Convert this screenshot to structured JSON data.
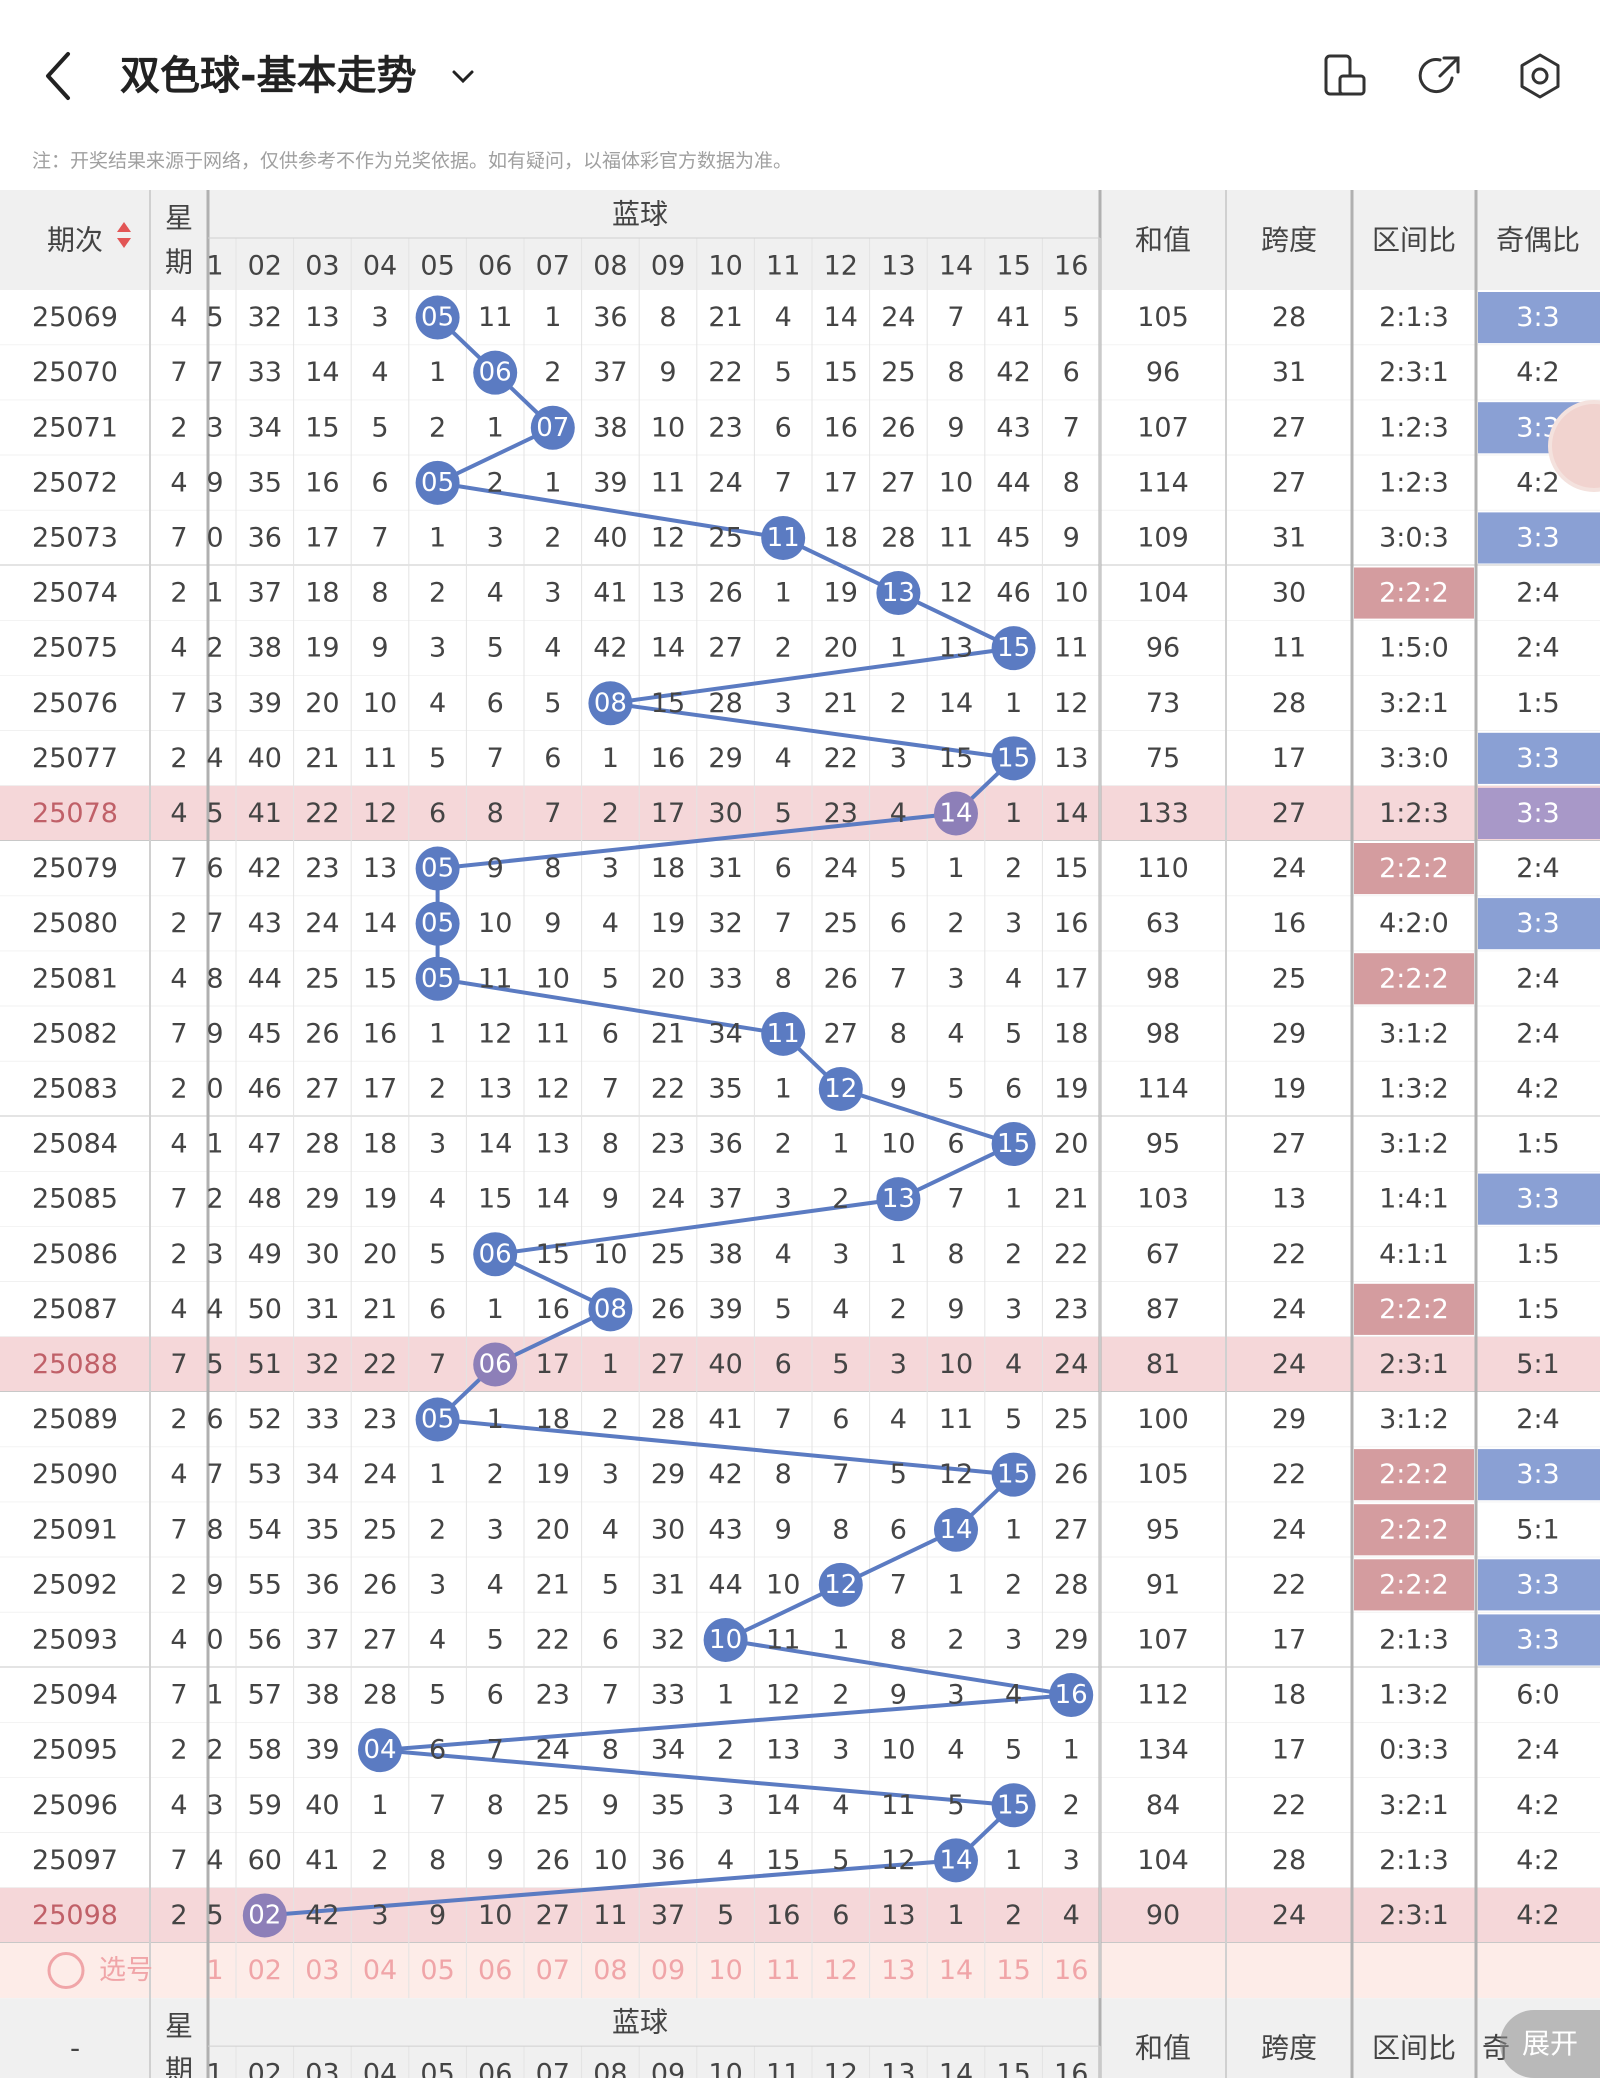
{
  "header": {
    "title": "双色球-基本走势"
  },
  "note": "注：开奖结果来源于网络，仅供参考不作为兑奖依据。如有疑问，以福体彩官方数据为准。",
  "columns": {
    "period": "期次",
    "week": "星期",
    "blue": "蓝球",
    "blue_numbers": [
      "1",
      "02",
      "03",
      "04",
      "05",
      "06",
      "07",
      "08",
      "09",
      "10",
      "11",
      "12",
      "13",
      "14",
      "15",
      "16"
    ],
    "sum": "和值",
    "span": "跨度",
    "zone": "区间比",
    "oddeven": "奇偶比"
  },
  "rows": [
    {
      "period": "25069",
      "week": "4",
      "first": "5",
      "blue": 5,
      "cells": [
        "32",
        "13",
        "3",
        "05",
        "11",
        "1",
        "36",
        "8",
        "21",
        "4",
        "14",
        "24",
        "7",
        "41",
        "5"
      ],
      "sum": "105",
      "span": "28",
      "zone": "2:1:3",
      "oe": "3:3",
      "zone_hl": false,
      "oe_hl": true,
      "row_hl": false
    },
    {
      "period": "25070",
      "week": "7",
      "first": "7",
      "blue": 6,
      "cells": [
        "33",
        "14",
        "4",
        "1",
        "06",
        "2",
        "37",
        "9",
        "22",
        "5",
        "15",
        "25",
        "8",
        "42",
        "6"
      ],
      "sum": "96",
      "span": "31",
      "zone": "2:3:1",
      "oe": "4:2",
      "zone_hl": false,
      "oe_hl": false,
      "row_hl": false
    },
    {
      "period": "25071",
      "week": "2",
      "first": "3",
      "blue": 7,
      "cells": [
        "34",
        "15",
        "5",
        "2",
        "1",
        "07",
        "38",
        "10",
        "23",
        "6",
        "16",
        "26",
        "9",
        "43",
        "7"
      ],
      "sum": "107",
      "span": "27",
      "zone": "1:2:3",
      "oe": "3:3",
      "zone_hl": false,
      "oe_hl": true,
      "row_hl": false
    },
    {
      "period": "25072",
      "week": "4",
      "first": "9",
      "blue": 5,
      "cells": [
        "35",
        "16",
        "6",
        "05",
        "2",
        "1",
        "39",
        "11",
        "24",
        "7",
        "17",
        "27",
        "10",
        "44",
        "8"
      ],
      "sum": "114",
      "span": "27",
      "zone": "1:2:3",
      "oe": "4:2",
      "zone_hl": false,
      "oe_hl": false,
      "row_hl": false
    },
    {
      "period": "25073",
      "week": "7",
      "first": "0",
      "blue": 11,
      "cells": [
        "36",
        "17",
        "7",
        "1",
        "3",
        "2",
        "40",
        "12",
        "25",
        "11",
        "18",
        "28",
        "11",
        "45",
        "9"
      ],
      "sum": "109",
      "span": "31",
      "zone": "3:0:3",
      "oe": "3:3",
      "zone_hl": false,
      "oe_hl": true,
      "row_hl": false
    },
    {
      "period": "25074",
      "week": "2",
      "first": "1",
      "blue": 13,
      "cells": [
        "37",
        "18",
        "8",
        "2",
        "4",
        "3",
        "41",
        "13",
        "26",
        "1",
        "19",
        "13",
        "12",
        "46",
        "10"
      ],
      "sum": "104",
      "span": "30",
      "zone": "2:2:2",
      "oe": "2:4",
      "zone_hl": true,
      "oe_hl": false,
      "row_hl": false
    },
    {
      "period": "25075",
      "week": "4",
      "first": "2",
      "blue": 15,
      "cells": [
        "38",
        "19",
        "9",
        "3",
        "5",
        "4",
        "42",
        "14",
        "27",
        "2",
        "20",
        "1",
        "13",
        "15",
        "11"
      ],
      "sum": "96",
      "span": "11",
      "zone": "1:5:0",
      "oe": "2:4",
      "zone_hl": false,
      "oe_hl": false,
      "row_hl": false
    },
    {
      "period": "25076",
      "week": "7",
      "first": "3",
      "blue": 8,
      "cells": [
        "39",
        "20",
        "10",
        "4",
        "6",
        "5",
        "08",
        "15",
        "28",
        "3",
        "21",
        "2",
        "14",
        "1",
        "12"
      ],
      "sum": "73",
      "span": "28",
      "zone": "3:2:1",
      "oe": "1:5",
      "zone_hl": false,
      "oe_hl": false,
      "row_hl": false
    },
    {
      "period": "25077",
      "week": "2",
      "first": "4",
      "blue": 15,
      "cells": [
        "40",
        "21",
        "11",
        "5",
        "7",
        "6",
        "1",
        "16",
        "29",
        "4",
        "22",
        "3",
        "15",
        "15",
        "13"
      ],
      "sum": "75",
      "span": "17",
      "zone": "3:3:0",
      "oe": "3:3",
      "zone_hl": false,
      "oe_hl": true,
      "row_hl": false
    },
    {
      "period": "25078",
      "week": "4",
      "first": "5",
      "blue": 14,
      "cells": [
        "41",
        "22",
        "12",
        "6",
        "8",
        "7",
        "2",
        "17",
        "30",
        "5",
        "23",
        "4",
        "14",
        "1",
        "14"
      ],
      "sum": "133",
      "span": "27",
      "zone": "1:2:3",
      "oe": "3:3",
      "zone_hl": false,
      "oe_hl": true,
      "row_hl": true
    },
    {
      "period": "25079",
      "week": "7",
      "first": "6",
      "blue": 5,
      "cells": [
        "42",
        "23",
        "13",
        "05",
        "9",
        "8",
        "3",
        "18",
        "31",
        "6",
        "24",
        "5",
        "1",
        "2",
        "15"
      ],
      "sum": "110",
      "span": "24",
      "zone": "2:2:2",
      "oe": "2:4",
      "zone_hl": true,
      "oe_hl": false,
      "row_hl": false
    },
    {
      "period": "25080",
      "week": "2",
      "first": "7",
      "blue": 5,
      "cells": [
        "43",
        "24",
        "14",
        "05",
        "10",
        "9",
        "4",
        "19",
        "32",
        "7",
        "25",
        "6",
        "2",
        "3",
        "16"
      ],
      "sum": "63",
      "span": "16",
      "zone": "4:2:0",
      "oe": "3:3",
      "zone_hl": false,
      "oe_hl": true,
      "row_hl": false
    },
    {
      "period": "25081",
      "week": "4",
      "first": "8",
      "blue": 5,
      "cells": [
        "44",
        "25",
        "15",
        "05",
        "11",
        "10",
        "5",
        "20",
        "33",
        "8",
        "26",
        "7",
        "3",
        "4",
        "17"
      ],
      "sum": "98",
      "span": "25",
      "zone": "2:2:2",
      "oe": "2:4",
      "zone_hl": true,
      "oe_hl": false,
      "row_hl": false
    },
    {
      "period": "25082",
      "week": "7",
      "first": "9",
      "blue": 11,
      "cells": [
        "45",
        "26",
        "16",
        "1",
        "12",
        "11",
        "6",
        "21",
        "34",
        "11",
        "27",
        "8",
        "4",
        "5",
        "18"
      ],
      "sum": "98",
      "span": "29",
      "zone": "3:1:2",
      "oe": "2:4",
      "zone_hl": false,
      "oe_hl": false,
      "row_hl": false
    },
    {
      "period": "25083",
      "week": "2",
      "first": "0",
      "blue": 12,
      "cells": [
        "46",
        "27",
        "17",
        "2",
        "13",
        "12",
        "7",
        "22",
        "35",
        "1",
        "12",
        "9",
        "5",
        "6",
        "19"
      ],
      "sum": "114",
      "span": "19",
      "zone": "1:3:2",
      "oe": "4:2",
      "zone_hl": false,
      "oe_hl": false,
      "row_hl": false
    },
    {
      "period": "25084",
      "week": "4",
      "first": "1",
      "blue": 15,
      "cells": [
        "47",
        "28",
        "18",
        "3",
        "14",
        "13",
        "8",
        "23",
        "36",
        "2",
        "1",
        "10",
        "6",
        "15",
        "20"
      ],
      "sum": "95",
      "span": "27",
      "zone": "3:1:2",
      "oe": "1:5",
      "zone_hl": false,
      "oe_hl": false,
      "row_hl": false
    },
    {
      "period": "25085",
      "week": "7",
      "first": "2",
      "blue": 13,
      "cells": [
        "48",
        "29",
        "19",
        "4",
        "15",
        "14",
        "9",
        "24",
        "37",
        "3",
        "2",
        "13",
        "7",
        "1",
        "21"
      ],
      "sum": "103",
      "span": "13",
      "zone": "1:4:1",
      "oe": "3:3",
      "zone_hl": false,
      "oe_hl": true,
      "row_hl": false
    },
    {
      "period": "25086",
      "week": "2",
      "first": "3",
      "blue": 6,
      "cells": [
        "49",
        "30",
        "20",
        "5",
        "06",
        "15",
        "10",
        "25",
        "38",
        "4",
        "3",
        "1",
        "8",
        "2",
        "22"
      ],
      "sum": "67",
      "span": "22",
      "zone": "4:1:1",
      "oe": "1:5",
      "zone_hl": false,
      "oe_hl": false,
      "row_hl": false
    },
    {
      "period": "25087",
      "week": "4",
      "first": "4",
      "blue": 8,
      "cells": [
        "50",
        "31",
        "21",
        "6",
        "1",
        "16",
        "08",
        "26",
        "39",
        "5",
        "4",
        "2",
        "9",
        "3",
        "23"
      ],
      "sum": "87",
      "span": "24",
      "zone": "2:2:2",
      "oe": "1:5",
      "zone_hl": true,
      "oe_hl": false,
      "row_hl": false
    },
    {
      "period": "25088",
      "week": "7",
      "first": "5",
      "blue": 6,
      "cells": [
        "51",
        "32",
        "22",
        "7",
        "06",
        "17",
        "1",
        "27",
        "40",
        "6",
        "5",
        "3",
        "10",
        "4",
        "24"
      ],
      "sum": "81",
      "span": "24",
      "zone": "2:3:1",
      "oe": "5:1",
      "zone_hl": false,
      "oe_hl": false,
      "row_hl": true
    },
    {
      "period": "25089",
      "week": "2",
      "first": "6",
      "blue": 5,
      "cells": [
        "52",
        "33",
        "23",
        "05",
        "1",
        "18",
        "2",
        "28",
        "41",
        "7",
        "6",
        "4",
        "11",
        "5",
        "25"
      ],
      "sum": "100",
      "span": "29",
      "zone": "3:1:2",
      "oe": "2:4",
      "zone_hl": false,
      "oe_hl": false,
      "row_hl": false
    },
    {
      "period": "25090",
      "week": "4",
      "first": "7",
      "blue": 15,
      "cells": [
        "53",
        "34",
        "24",
        "1",
        "2",
        "19",
        "3",
        "29",
        "42",
        "8",
        "7",
        "5",
        "12",
        "15",
        "26"
      ],
      "sum": "105",
      "span": "22",
      "zone": "2:2:2",
      "oe": "3:3",
      "zone_hl": true,
      "oe_hl": true,
      "row_hl": false
    },
    {
      "period": "25091",
      "week": "7",
      "first": "8",
      "blue": 14,
      "cells": [
        "54",
        "35",
        "25",
        "2",
        "3",
        "20",
        "4",
        "30",
        "43",
        "9",
        "8",
        "6",
        "14",
        "1",
        "27"
      ],
      "sum": "95",
      "span": "24",
      "zone": "2:2:2",
      "oe": "5:1",
      "zone_hl": true,
      "oe_hl": false,
      "row_hl": false
    },
    {
      "period": "25092",
      "week": "2",
      "first": "9",
      "blue": 12,
      "cells": [
        "55",
        "36",
        "26",
        "3",
        "4",
        "21",
        "5",
        "31",
        "44",
        "10",
        "12",
        "7",
        "1",
        "2",
        "28"
      ],
      "sum": "91",
      "span": "22",
      "zone": "2:2:2",
      "oe": "3:3",
      "zone_hl": true,
      "oe_hl": true,
      "row_hl": false
    },
    {
      "period": "25093",
      "week": "4",
      "first": "0",
      "blue": 10,
      "cells": [
        "56",
        "37",
        "27",
        "4",
        "5",
        "22",
        "6",
        "32",
        "10",
        "11",
        "1",
        "8",
        "2",
        "3",
        "29"
      ],
      "sum": "107",
      "span": "17",
      "zone": "2:1:3",
      "oe": "3:3",
      "zone_hl": false,
      "oe_hl": true,
      "row_hl": false
    },
    {
      "period": "25094",
      "week": "7",
      "first": "1",
      "blue": 16,
      "cells": [
        "57",
        "38",
        "28",
        "5",
        "6",
        "23",
        "7",
        "33",
        "1",
        "12",
        "2",
        "9",
        "3",
        "4",
        "16"
      ],
      "sum": "112",
      "span": "18",
      "zone": "1:3:2",
      "oe": "6:0",
      "zone_hl": false,
      "oe_hl": false,
      "row_hl": false
    },
    {
      "period": "25095",
      "week": "2",
      "first": "2",
      "blue": 4,
      "cells": [
        "58",
        "39",
        "04",
        "6",
        "7",
        "24",
        "8",
        "34",
        "2",
        "13",
        "3",
        "10",
        "4",
        "5",
        "1"
      ],
      "sum": "134",
      "span": "17",
      "zone": "0:3:3",
      "oe": "2:4",
      "zone_hl": false,
      "oe_hl": false,
      "row_hl": false
    },
    {
      "period": "25096",
      "week": "4",
      "first": "3",
      "blue": 15,
      "cells": [
        "59",
        "40",
        "1",
        "7",
        "8",
        "25",
        "9",
        "35",
        "3",
        "14",
        "4",
        "11",
        "5",
        "15",
        "2"
      ],
      "sum": "84",
      "span": "22",
      "zone": "3:2:1",
      "oe": "4:2",
      "zone_hl": false,
      "oe_hl": false,
      "row_hl": false
    },
    {
      "period": "25097",
      "week": "7",
      "first": "4",
      "blue": 14,
      "cells": [
        "60",
        "41",
        "2",
        "8",
        "9",
        "26",
        "10",
        "36",
        "4",
        "15",
        "5",
        "12",
        "14",
        "1",
        "3"
      ],
      "sum": "104",
      "span": "28",
      "zone": "2:1:3",
      "oe": "4:2",
      "zone_hl": false,
      "oe_hl": false,
      "row_hl": false
    },
    {
      "period": "25098",
      "week": "2",
      "first": "5",
      "blue": 2,
      "cells": [
        "02",
        "42",
        "3",
        "9",
        "10",
        "27",
        "11",
        "37",
        "5",
        "16",
        "6",
        "13",
        "1",
        "2",
        "4"
      ],
      "sum": "90",
      "span": "24",
      "zone": "2:3:1",
      "oe": "4:2",
      "zone_hl": false,
      "oe_hl": false,
      "row_hl": true
    }
  ],
  "select_row": {
    "label": "选号",
    "numbers": [
      "1",
      "02",
      "03",
      "04",
      "05",
      "06",
      "07",
      "08",
      "09",
      "10",
      "11",
      "12",
      "13",
      "14",
      "15",
      "16"
    ]
  },
  "bottom_header": {
    "period": "-",
    "week": "星期",
    "blue": "蓝球",
    "sum": "和值",
    "span": "跨度",
    "zone": "区间比",
    "oddeven": "奇"
  },
  "expand_button": "展开",
  "colors": {
    "ball": "#5b7bc2",
    "ball_hl": "#8d7fb8",
    "row_hl": "#f5d7d9",
    "zone_hl": "#d49c9f",
    "oe_hl": "#8aa0d4",
    "line": "#5b7bc2",
    "select_text": "#f0a5a8"
  }
}
